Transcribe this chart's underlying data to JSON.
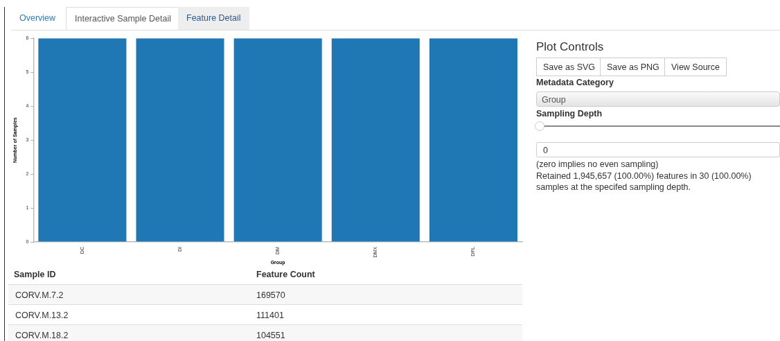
{
  "chart_data": {
    "type": "bar",
    "categories": [
      "DC",
      "DI",
      "DM",
      "DMX",
      "DPL"
    ],
    "values": [
      6,
      6,
      6,
      6,
      6
    ],
    "color": "#1f77b4",
    "xlabel": "Group",
    "ylabel": "Number of Samples",
    "ylim": [
      0,
      6
    ],
    "yticks": [
      0,
      1,
      2,
      3,
      4,
      5,
      6
    ],
    "grid": false,
    "legend": false,
    "annotations": [
      "Overview",
      "Interactive Sample Detail",
      "Feature Detail",
      "Plot Controls",
      "Save as SVG",
      "Save as PNG",
      "View Source",
      "Metadata Category",
      "Group",
      "Sampling Depth",
      "0",
      "(zero implies no even sampling)",
      "Retained 1,945,657 (100.00%) features in 30 (100.00%) samples at the specifed sampling depth.",
      "Sample ID",
      "Feature Count",
      "CORV.M.7.2",
      "169570",
      "CORV.M.13.2",
      "111401",
      "CORV.M.18.2",
      "104551"
    ]
  }
}
